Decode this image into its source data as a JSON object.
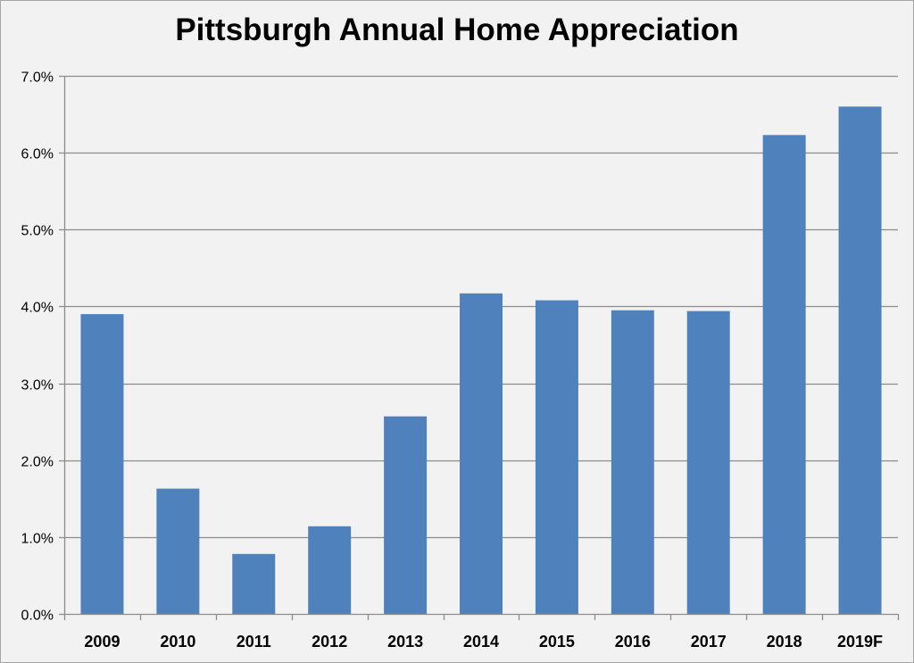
{
  "chart_data": {
    "type": "bar",
    "title": "Pittsburgh Annual Home Appreciation",
    "xlabel": "",
    "ylabel": "",
    "categories": [
      "2009",
      "2010",
      "2011",
      "2012",
      "2013",
      "2014",
      "2015",
      "2016",
      "2017",
      "2018",
      "2019F"
    ],
    "values": [
      3.9,
      1.63,
      0.78,
      1.14,
      2.57,
      4.17,
      4.08,
      3.95,
      3.94,
      6.23,
      6.6
    ],
    "ylim": [
      0,
      7
    ],
    "yticks": [
      "0.0%",
      "1.0%",
      "2.0%",
      "3.0%",
      "4.0%",
      "5.0%",
      "6.0%",
      "7.0%"
    ],
    "grid": true,
    "legend": "none",
    "bar_color": "#4f81bd",
    "grid_color": "#8c8c8c",
    "background_color": "#f2f2f2"
  }
}
